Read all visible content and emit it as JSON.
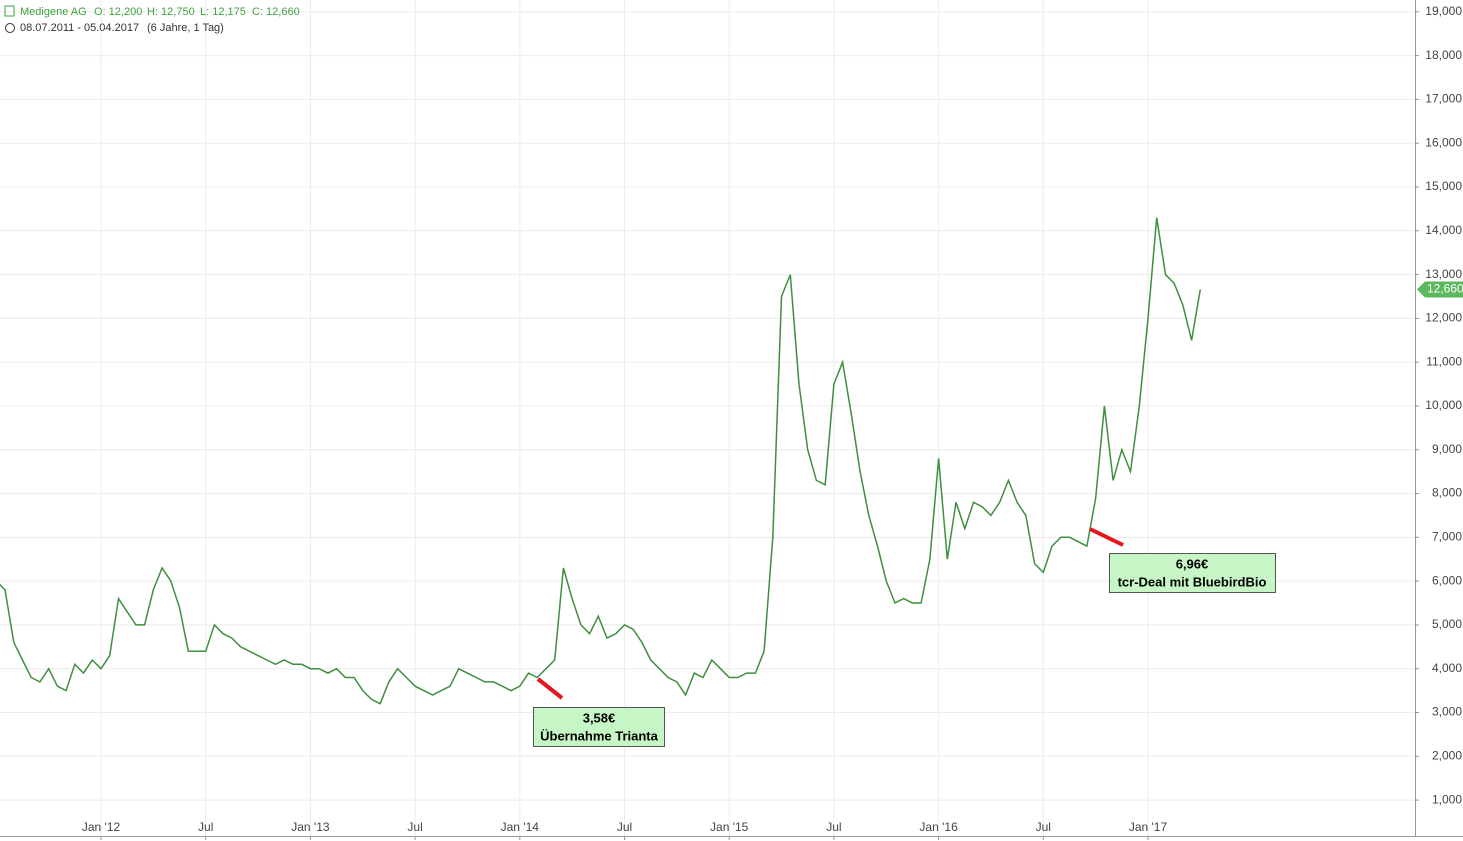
{
  "chart_data": {
    "type": "line",
    "title": "Medigene AG",
    "info": [
      "O: 12,200",
      "H: 12,750",
      "L: 12,175",
      "C: 12,660"
    ],
    "subtitle": "08.07.2011 - 05.04.2017",
    "range_note": "(6 Jahre, 1 Tag)",
    "categories": [
      null,
      null,
      null,
      null,
      null,
      null,
      null,
      null,
      null,
      null,
      null,
      null,
      "Jan '12",
      null,
      null,
      null,
      null,
      null,
      null,
      null,
      null,
      null,
      null,
      null,
      "Jul",
      null,
      null,
      null,
      null,
      null,
      null,
      null,
      null,
      null,
      null,
      null,
      "Jan '13",
      null,
      null,
      null,
      null,
      null,
      null,
      null,
      null,
      null,
      null,
      null,
      "Jul",
      null,
      null,
      null,
      null,
      null,
      null,
      null,
      null,
      null,
      null,
      null,
      "Jan '14",
      null,
      null,
      null,
      null,
      null,
      null,
      null,
      null,
      null,
      null,
      null,
      "Jul",
      null,
      null,
      null,
      null,
      null,
      null,
      null,
      null,
      null,
      null,
      null,
      "Jan '15",
      null,
      null,
      null,
      null,
      null,
      null,
      null,
      null,
      null,
      null,
      null,
      "Jul",
      null,
      null,
      null,
      null,
      null,
      null,
      null,
      null,
      null,
      null,
      null,
      "Jan '16",
      null,
      null,
      null,
      null,
      null,
      null,
      null,
      null,
      null,
      null,
      null,
      "Jul",
      null,
      null,
      null,
      null,
      null,
      null,
      null,
      null,
      null,
      null,
      null,
      "Jan '17",
      null,
      null,
      null,
      null,
      null,
      null
    ],
    "series": [
      {
        "name": "Medigene AG",
        "color": "#3f8f3f",
        "values": [
          6.0,
          5.8,
          4.6,
          4.2,
          3.8,
          3.7,
          4.0,
          3.6,
          3.5,
          4.1,
          3.9,
          4.2,
          4.0,
          4.3,
          5.6,
          5.3,
          5.0,
          5.0,
          5.8,
          6.3,
          6.0,
          5.4,
          4.4,
          4.4,
          4.4,
          5.0,
          4.8,
          4.7,
          4.5,
          4.4,
          4.3,
          4.2,
          4.1,
          4.2,
          4.1,
          4.1,
          4.0,
          4.0,
          3.9,
          4.0,
          3.8,
          3.8,
          3.5,
          3.3,
          3.2,
          3.7,
          4.0,
          3.8,
          3.6,
          3.5,
          3.4,
          3.5,
          3.6,
          4.0,
          3.9,
          3.8,
          3.7,
          3.7,
          3.6,
          3.5,
          3.6,
          3.9,
          3.8,
          4.0,
          4.2,
          6.3,
          5.6,
          5.0,
          4.8,
          5.2,
          4.7,
          4.8,
          5.0,
          4.9,
          4.6,
          4.2,
          4.0,
          3.8,
          3.7,
          3.4,
          3.9,
          3.8,
          4.2,
          4.0,
          3.8,
          3.8,
          3.9,
          3.9,
          4.4,
          7.0,
          12.5,
          13.0,
          10.5,
          9.0,
          8.3,
          8.2,
          10.5,
          11.0,
          9.8,
          8.5,
          7.5,
          6.8,
          6.0,
          5.5,
          5.6,
          5.5,
          5.5,
          6.5,
          8.8,
          6.5,
          7.8,
          7.2,
          7.8,
          7.7,
          7.5,
          7.8,
          8.3,
          7.8,
          7.5,
          6.4,
          6.2,
          6.8,
          7.0,
          7.0,
          6.9,
          6.8,
          7.9,
          10.0,
          8.3,
          9.0,
          8.5,
          10.0,
          12.0,
          14.3,
          13.0,
          12.8,
          12.3,
          11.5,
          12.66
        ]
      }
    ],
    "ylim": [
      0.18,
      19.27
    ],
    "yticks": [
      {
        "value": 1,
        "label": "1,000"
      },
      {
        "value": 2,
        "label": "2,000"
      },
      {
        "value": 3,
        "label": "3,000"
      },
      {
        "value": 4,
        "label": "4,000"
      },
      {
        "value": 5,
        "label": "5,000"
      },
      {
        "value": 6,
        "label": "6,000"
      },
      {
        "value": 7,
        "label": "7,000"
      },
      {
        "value": 8,
        "label": "8,000"
      },
      {
        "value": 9,
        "label": "9,000"
      },
      {
        "value": 10,
        "label": "10,000"
      },
      {
        "value": 11,
        "label": "11,000"
      },
      {
        "value": 12,
        "label": "12,000"
      },
      {
        "value": 13,
        "label": "13,000"
      },
      {
        "value": 14,
        "label": "14,000"
      },
      {
        "value": 15,
        "label": "15,000"
      },
      {
        "value": 16,
        "label": "16,000"
      },
      {
        "value": 17,
        "label": "17,000"
      },
      {
        "value": 18,
        "label": "18,000"
      },
      {
        "value": 19,
        "label": "19,000"
      }
    ],
    "last_price": {
      "value": 12.66,
      "label": "12,660"
    },
    "annotations": [
      {
        "price": "3,58€",
        "text": "Übernahme Trianta"
      },
      {
        "price": "6,96€",
        "text": "tcr-Deal mit BluebirdBio"
      }
    ],
    "grid": true
  }
}
